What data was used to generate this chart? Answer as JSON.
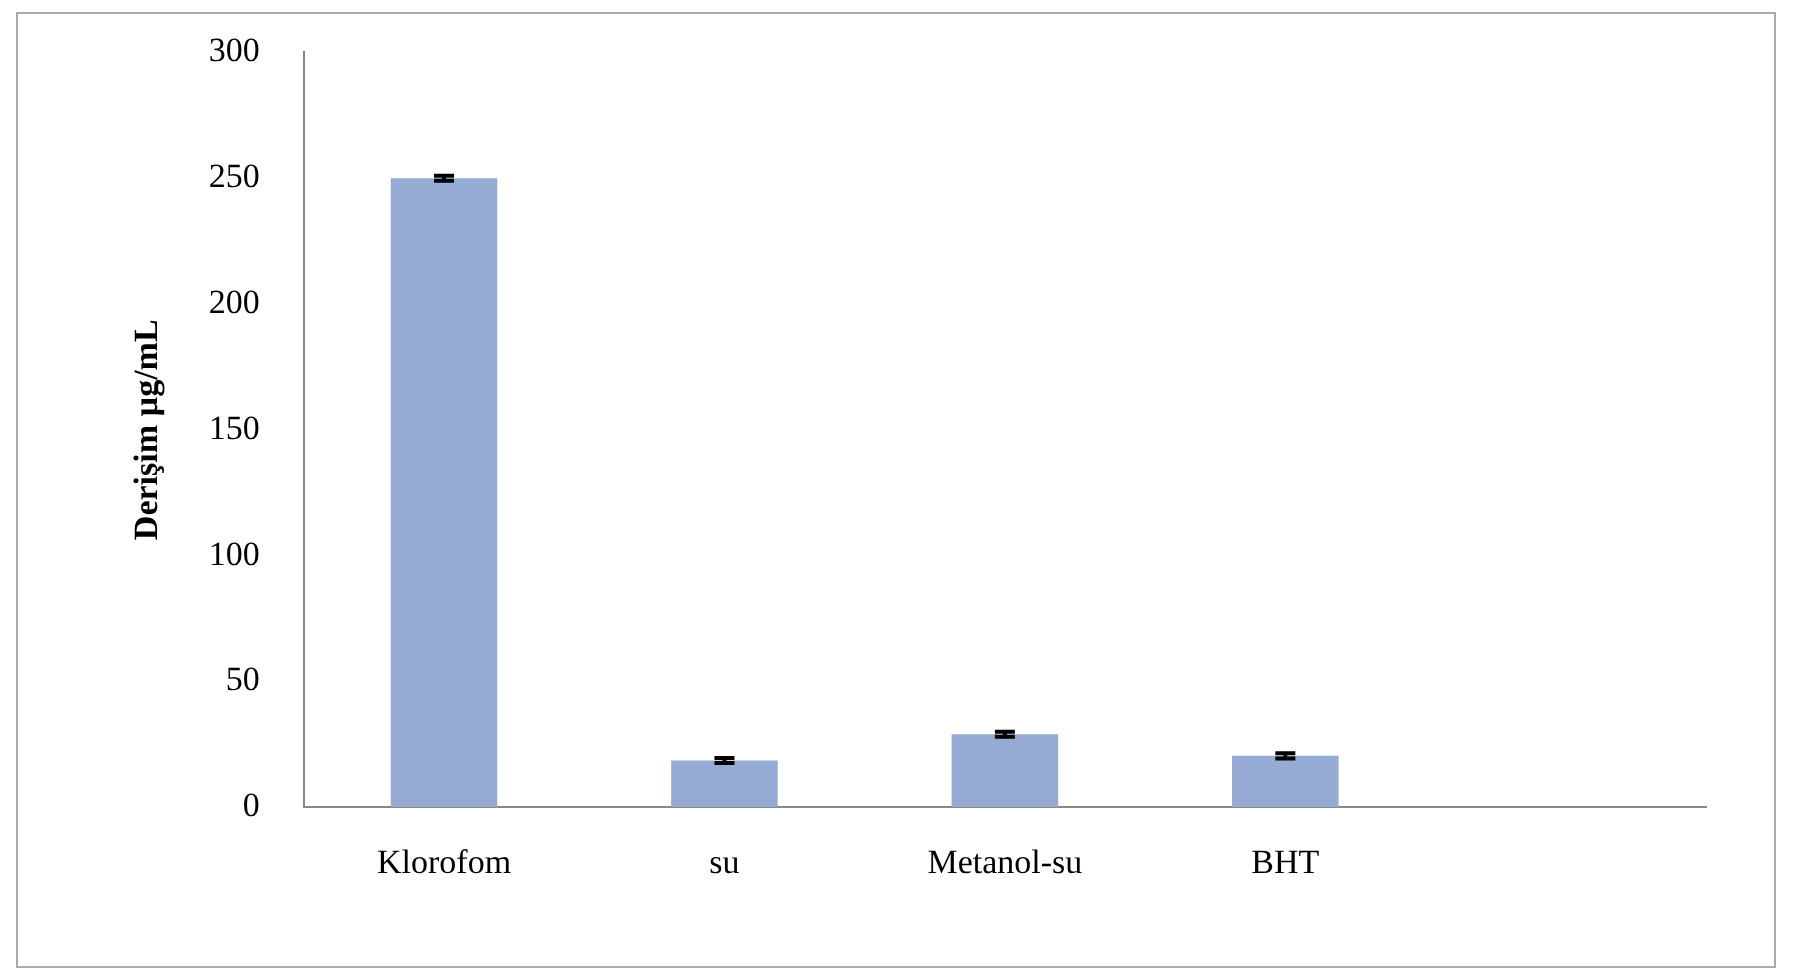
{
  "chart_data": {
    "type": "bar",
    "ylabel": "Derişim µg/mL",
    "categories": [
      "Klorofom",
      "su",
      "Metanol-su",
      "BHT",
      null
    ],
    "values": [
      250,
      18.6,
      29,
      20.4,
      null
    ],
    "errors": [
      1,
      1,
      1,
      1,
      null
    ],
    "color": "#95abd3",
    "ylim": [
      0,
      300
    ],
    "yticks": [
      0,
      50,
      100,
      150,
      200,
      250,
      300
    ],
    "grid": false,
    "legend": false
  }
}
